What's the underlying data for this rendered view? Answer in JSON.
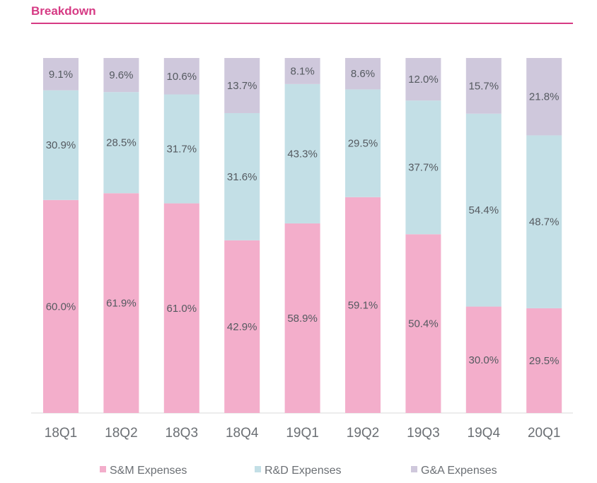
{
  "header": {
    "title": "Breakdown"
  },
  "chart_data": {
    "type": "bar",
    "stacked": true,
    "categories": [
      "18Q1",
      "18Q2",
      "18Q3",
      "18Q4",
      "19Q1",
      "19Q2",
      "19Q3",
      "19Q4",
      "20Q1"
    ],
    "series": [
      {
        "name": "S&M Expenses",
        "color": "#f3aecb",
        "values": [
          60.0,
          61.9,
          61.0,
          42.9,
          58.9,
          59.1,
          50.4,
          30.0,
          29.5
        ],
        "labels": [
          "60.0%",
          "61.9%",
          "61.0%",
          "42.9%",
          "58.9%",
          "59.1%",
          "50.4%",
          "30.0%",
          "29.5%"
        ]
      },
      {
        "name": "R&D Expenses",
        "color": "#c3dfe6",
        "values": [
          30.9,
          28.5,
          31.7,
          31.6,
          43.3,
          29.5,
          37.7,
          54.4,
          48.7
        ],
        "labels": [
          "30.9%",
          "28.5%",
          "31.7%",
          "31.6%",
          "43.3%",
          "29.5%",
          "37.7%",
          "54.4%",
          "48.7%"
        ]
      },
      {
        "name": "G&A Expenses",
        "color": "#cfc8dc",
        "values": [
          9.1,
          9.6,
          10.6,
          13.7,
          8.1,
          8.6,
          12.0,
          15.7,
          21.8
        ],
        "labels": [
          "9.1%",
          "9.6%",
          "10.6%",
          "13.7%",
          "8.1%",
          "8.6%",
          "12.0%",
          "15.7%",
          "21.8%"
        ]
      }
    ],
    "legend_position": "bottom",
    "grid": false
  }
}
